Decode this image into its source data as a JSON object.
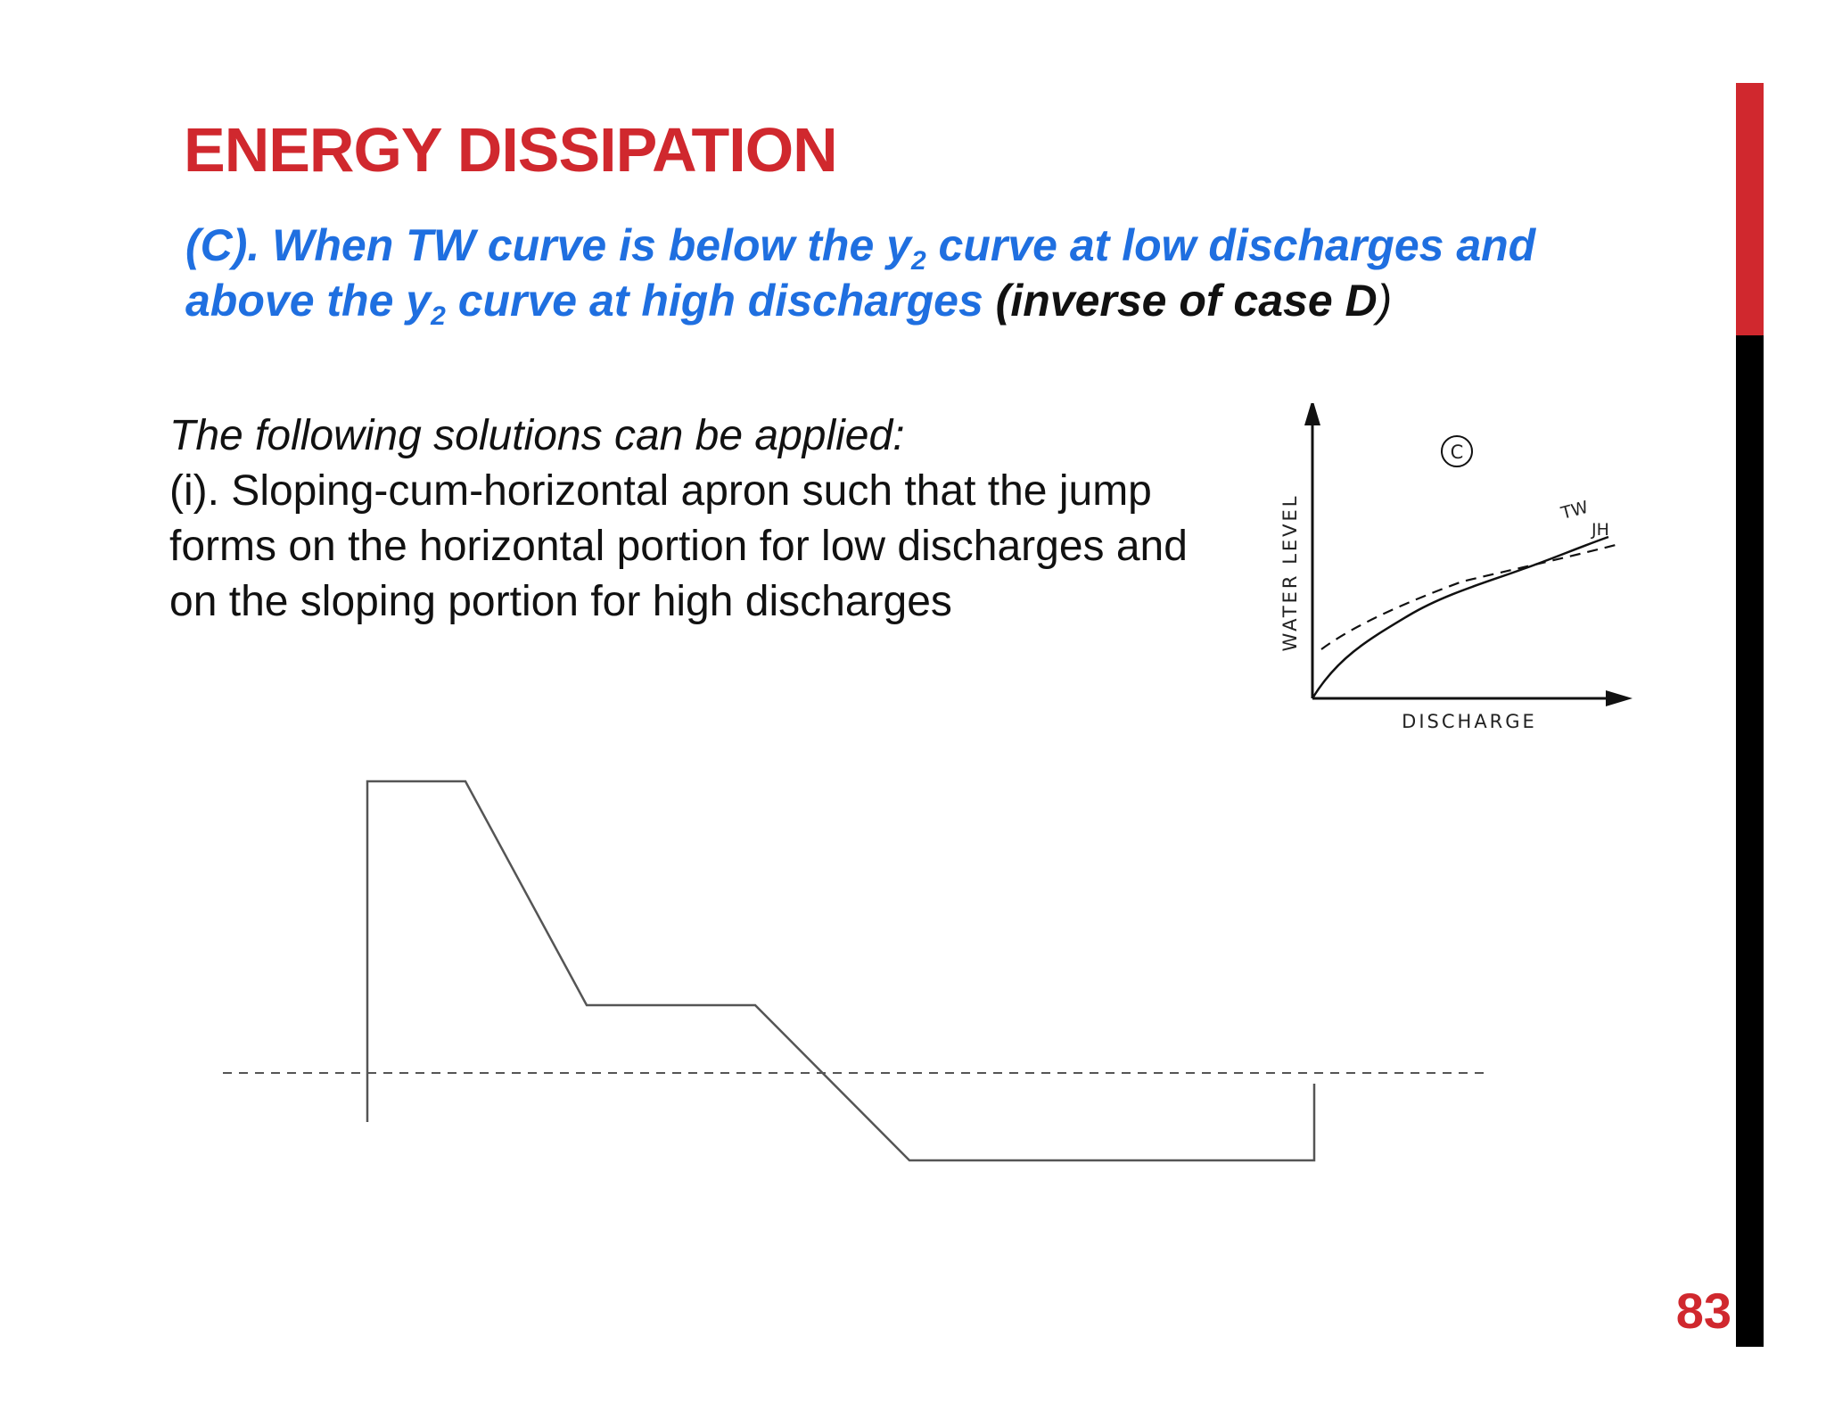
{
  "slide": {
    "title": "ENERGY DISSIPATION",
    "subtitle": {
      "part1": "(C). When TW curve is below  the y",
      "sub1": "2",
      "part2": " curve at low discharges and above the y",
      "sub2": "2",
      "part3": " curve at high discharges",
      "note": " (inverse of case D",
      "note_close": ")"
    },
    "body": {
      "intro": "The following solutions can be applied:",
      "point": "(i). Sloping-cum-horizontal apron such that the jump forms on the horizontal portion for low discharges and on the sloping portion for high discharges"
    },
    "page_number": "83"
  },
  "graph": {
    "case_label": "C",
    "y_axis_label": "WATER LEVEL",
    "x_axis_label": "DISCHARGE",
    "tw_label": "TW",
    "jh_label": "JH"
  },
  "colors": {
    "title_red": "#d0282e",
    "subtitle_blue": "#1f6fe0",
    "sidebar_black": "#000000"
  }
}
